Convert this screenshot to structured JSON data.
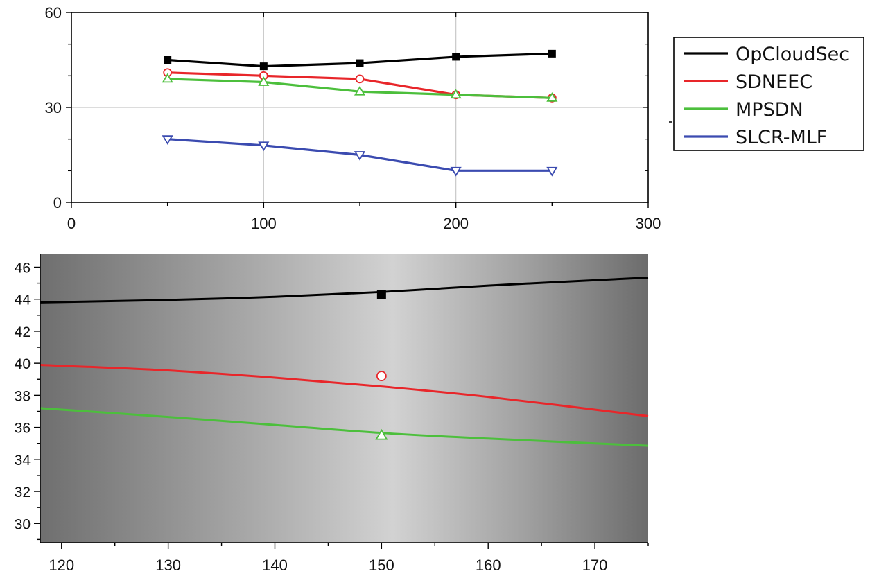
{
  "chart_data": [
    {
      "type": "line",
      "title": "",
      "xlabel": "",
      "ylabel": "",
      "x": [
        50,
        100,
        150,
        200,
        250
      ],
      "xlim": [
        0,
        300
      ],
      "ylim": [
        0,
        60
      ],
      "xticks": [
        "0",
        "100",
        "200",
        "300"
      ],
      "yticks": [
        "0",
        "30",
        "60"
      ],
      "grid": true,
      "legend_position": "right",
      "series": [
        {
          "name": "OpCloudSec",
          "color": "#000000",
          "marker": "square",
          "values": [
            45,
            43,
            44,
            46,
            47
          ]
        },
        {
          "name": "SDNEEC",
          "color": "#e8262a",
          "marker": "circle",
          "values": [
            41,
            40,
            39,
            34,
            33
          ]
        },
        {
          "name": "MPSDN",
          "color": "#4cbf3c",
          "marker": "triangle-up",
          "values": [
            39,
            38,
            35,
            34,
            33
          ]
        },
        {
          "name": "SLCR-MLF",
          "color": "#3b4bb0",
          "marker": "triangle-down",
          "values": [
            20,
            18,
            15,
            10,
            10
          ]
        }
      ]
    },
    {
      "type": "line",
      "title": "",
      "xlabel": "",
      "ylabel": "",
      "xlim": [
        118,
        175
      ],
      "ylim": [
        28.8,
        46.8
      ],
      "xticks": [
        "120",
        "130",
        "140",
        "150",
        "160",
        "170"
      ],
      "yticks": [
        "30",
        "32",
        "34",
        "36",
        "38",
        "40",
        "42",
        "44",
        "46"
      ],
      "grid": false,
      "background": "gradient-gray",
      "series": [
        {
          "color": "#000000",
          "curve": [
            [
              118,
              43.8
            ],
            [
              130,
              43.95
            ],
            [
              140,
              44.15
            ],
            [
              150,
              44.45
            ],
            [
              160,
              44.85
            ],
            [
              175,
              45.35
            ]
          ],
          "marker": "square",
          "marker_point": [
            150,
            44.3
          ]
        },
        {
          "color": "#e8262a",
          "curve": [
            [
              118,
              39.9
            ],
            [
              130,
              39.55
            ],
            [
              140,
              39.1
            ],
            [
              150,
              38.55
            ],
            [
              160,
              37.9
            ],
            [
              175,
              36.7
            ]
          ],
          "marker": "circle",
          "marker_point": [
            150,
            39.2
          ]
        },
        {
          "color": "#4cbf3c",
          "curve": [
            [
              118,
              37.2
            ],
            [
              130,
              36.65
            ],
            [
              140,
              36.15
            ],
            [
              150,
              35.65
            ],
            [
              160,
              35.3
            ],
            [
              175,
              34.85
            ]
          ],
          "marker": "triangle-up",
          "marker_point": [
            150,
            35.5
          ]
        }
      ]
    }
  ]
}
